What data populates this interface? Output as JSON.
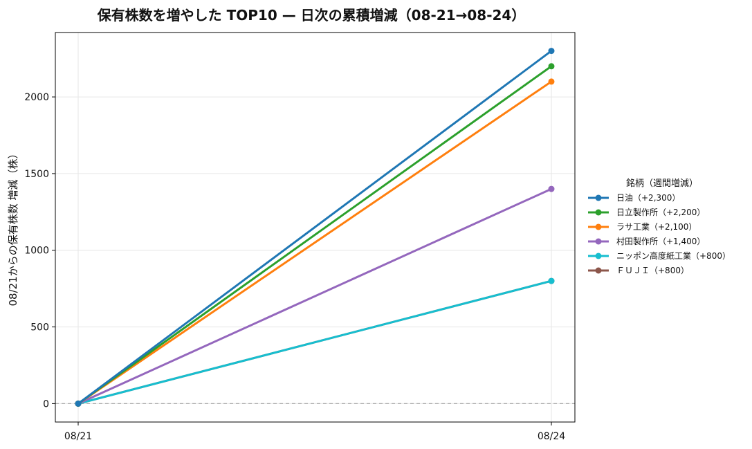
{
  "chart_data": {
    "type": "line",
    "title": "保有株数を増やした TOP10 — 日次の累積増減（08-21→08-24）",
    "xlabel": "",
    "ylabel": "08/21からの保有株数 増減（株）",
    "x": [
      "08/21",
      "08/24"
    ],
    "ylim": [
      -120,
      2420
    ],
    "yticks": [
      0,
      500,
      1000,
      1500,
      2000
    ],
    "grid": true,
    "zero_line": true,
    "legend_title": "銘柄（週間増減）",
    "legend_position": "right",
    "series": [
      {
        "name": "日油（+2,300）",
        "values": [
          0,
          2300
        ],
        "color": "#1f77b4"
      },
      {
        "name": "日立製作所（+2,200）",
        "values": [
          0,
          2200
        ],
        "color": "#2ca02c"
      },
      {
        "name": "ラサ工業（+2,100）",
        "values": [
          0,
          2100
        ],
        "color": "#ff7f0e"
      },
      {
        "name": "村田製作所（+1,400）",
        "values": [
          0,
          1400
        ],
        "color": "#9467bd"
      },
      {
        "name": "ニッポン高度紙工業（+800）",
        "values": [
          0,
          800
        ],
        "color": "#17becf"
      },
      {
        "name": "ＦＵＪＩ（+800）",
        "values": [
          0,
          800
        ],
        "color": "#8c564b"
      }
    ]
  }
}
